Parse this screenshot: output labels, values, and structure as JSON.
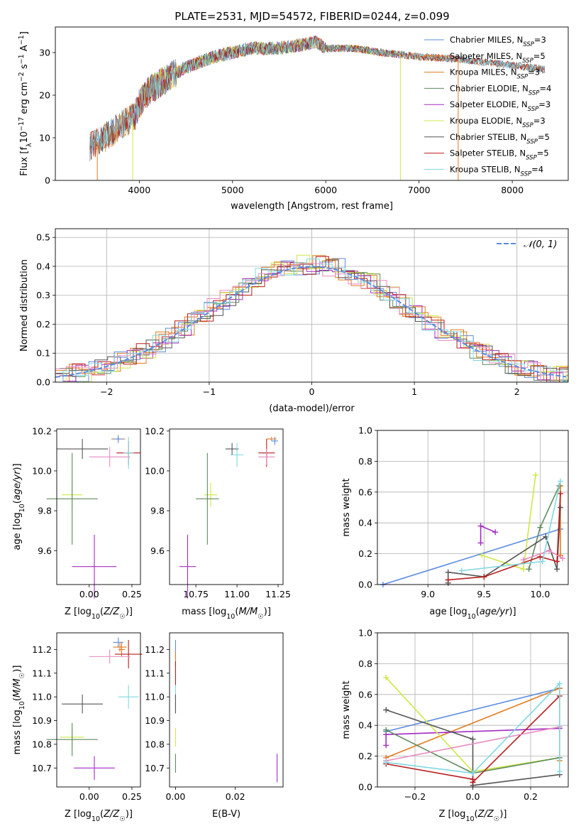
{
  "figure": {
    "title": "PLATE=2531, MJD=54572, FIBERID=0244, z=0.099"
  },
  "colors": {
    "Chabrier MILES": "#5b8ce0",
    "Salpeter MILES": "#e07b1f",
    "Kroupa MILES": "#e07b1f",
    "Chabrier ELODIE": "#5e8a5e",
    "Salpeter ELODIE": "#a32cc4",
    "Kroupa ELODIE": "#cfe846",
    "Chabrier STELIB": "#555555",
    "Salpeter STELIB": "#b81d1d",
    "Kroupa STELIB": "#80d8e0",
    "pink": "#e88ac0",
    "normal_curve": "#5b8ce0"
  },
  "chart_data": [
    {
      "id": "spectrum",
      "type": "line",
      "title": "PLATE=2531, MJD=54572, FIBERID=0244, z=0.099",
      "xlabel": "wavelength [Angstrom, rest frame]",
      "ylabel": "Flux [f_λ 10^-17 erg cm^-2 s^-1 A^-1]",
      "xlim": [
        3100,
        8600
      ],
      "ylim": [
        0,
        36
      ],
      "xticks": [
        "4000",
        "5000",
        "6000",
        "7000",
        "8000"
      ],
      "yticks": [
        "0",
        "10",
        "20",
        "30"
      ],
      "grid": false,
      "legend_placement": "top-right",
      "continuum": {
        "x": [
          3470,
          3600,
          3800,
          3950,
          4000,
          4100,
          4300,
          4500,
          4800,
          5000,
          5200,
          5500,
          5800,
          5900,
          6000,
          6300,
          6600,
          6800,
          7000,
          7400,
          7800,
          8000,
          8200,
          8350
        ],
        "y": [
          8,
          9.5,
          13,
          15,
          18,
          21,
          24,
          26.5,
          29,
          30,
          31,
          31,
          32,
          32.5,
          31,
          31,
          30,
          29.5,
          29,
          28.5,
          27.5,
          27,
          26.5,
          26
        ]
      },
      "series": [
        {
          "name": "Chabrier MILES, N_SSP=3",
          "legend_main": "Chabrier MILES, N",
          "legend_sub": "SSP",
          "legend_tail": "=3"
        },
        {
          "name": "Salpeter MILES, N_SSP=5",
          "legend_main": "Salpeter MILES, N",
          "legend_sub": "SSP",
          "legend_tail": "=5"
        },
        {
          "name": "Kroupa MILES, N_SSP=3",
          "legend_main": "Kroupa MILES, N",
          "legend_sub": "SSP",
          "legend_tail": "=3"
        },
        {
          "name": "Chabrier ELODIE, N_SSP=4",
          "legend_main": "Chabrier ELODIE, N",
          "legend_sub": "SSP",
          "legend_tail": "=4"
        },
        {
          "name": "Salpeter ELODIE, N_SSP=3",
          "legend_main": "Salpeter ELODIE, N",
          "legend_sub": "SSP",
          "legend_tail": "=3"
        },
        {
          "name": "Kroupa ELODIE, N_SSP=3",
          "legend_main": "Kroupa ELODIE, N",
          "legend_sub": "SSP",
          "legend_tail": "=3"
        },
        {
          "name": "Chabrier STELIB, N_SSP=5",
          "legend_main": "Chabrier STELIB, N",
          "legend_sub": "SSP",
          "legend_tail": "=5"
        },
        {
          "name": "Salpeter STELIB, N_SSP=5",
          "legend_main": "Salpeter STELIB, N",
          "legend_sub": "SSP",
          "legend_tail": "=5"
        },
        {
          "name": "Kroupa STELIB, N_SSP=4",
          "legend_main": "Kroupa STELIB, N",
          "legend_sub": "SSP",
          "legend_tail": "=4"
        }
      ]
    },
    {
      "id": "residuals",
      "type": "line",
      "xlabel": "(data-model)/error",
      "ylabel": "Normed distribution",
      "xlim": [
        -2.5,
        2.5
      ],
      "ylim": [
        0,
        0.53
      ],
      "xticks": [
        "−2",
        "−1",
        "0",
        "1",
        "2"
      ],
      "yticks": [
        "0.0",
        "0.1",
        "0.2",
        "0.3",
        "0.4",
        "0.5"
      ],
      "grid": true,
      "legend_placement": "top-right",
      "legend": [
        "N(0,1)"
      ],
      "curve": {
        "name": "N(0,1)",
        "mean": 0,
        "sigma": 1
      }
    },
    {
      "id": "age_vs_Z",
      "type": "scatter",
      "xlabel": "Z [log10(Z/Z☉)]",
      "ylabel": "age [log10(age/yr)]",
      "xlim": [
        -0.19,
        0.3
      ],
      "ylim": [
        9.43,
        10.21
      ],
      "xticks": [
        "0.00",
        "0.25"
      ],
      "yticks": [
        "9.6",
        "9.8",
        "10.0",
        "10.2"
      ],
      "grid": false,
      "points": [
        {
          "x": 0.17,
          "y": 10.16,
          "xerr": 0.04,
          "yerr": 0.01,
          "c": "Salpeter MILES"
        },
        {
          "x": 0.17,
          "y": 10.16,
          "xerr": 0.03,
          "yerr": 0.02,
          "c": "Chabrier MILES"
        },
        {
          "x": -0.04,
          "y": 10.11,
          "xerr": 0.15,
          "yerr": 0.05,
          "c": "Chabrier STELIB"
        },
        {
          "x": 0.23,
          "y": 10.09,
          "xerr": 0.07,
          "yerr": 0.06,
          "c": "Salpeter STELIB"
        },
        {
          "x": 0.12,
          "y": 10.07,
          "xerr": 0.12,
          "yerr": 0.05,
          "c": "pink"
        },
        {
          "x": 0.23,
          "y": 10.09,
          "xerr": 0.03,
          "yerr": 0.08,
          "c": "Kroupa STELIB"
        },
        {
          "x": -0.1,
          "y": 9.88,
          "xerr": 0.06,
          "yerr": 0.08,
          "c": "Kroupa ELODIE"
        },
        {
          "x": -0.1,
          "y": 9.86,
          "xerr": 0.15,
          "yerr": 0.23,
          "c": "Chabrier ELODIE"
        },
        {
          "x": 0.03,
          "y": 9.52,
          "xerr": 0.13,
          "yerr": 0.16,
          "c": "Salpeter ELODIE"
        }
      ]
    },
    {
      "id": "age_vs_mass",
      "type": "scatter",
      "xlabel": "mass [log10(M/M☉)]",
      "ylabel": "",
      "xlim": [
        10.59,
        11.28
      ],
      "ylim": [
        9.43,
        10.21
      ],
      "xticks": [
        "10.75",
        "11.00",
        "11.25"
      ],
      "yticks": [
        "9.6",
        "9.8",
        "10.0",
        "10.2"
      ],
      "grid": false,
      "points": [
        {
          "x": 11.21,
          "y": 10.16,
          "xerr": 0.03,
          "yerr": 0.01,
          "c": "Salpeter MILES"
        },
        {
          "x": 11.23,
          "y": 10.15,
          "xerr": 0.02,
          "yerr": 0.02,
          "c": "Chabrier MILES"
        },
        {
          "x": 10.97,
          "y": 10.11,
          "xerr": 0.04,
          "yerr": 0.03,
          "c": "Chabrier STELIB"
        },
        {
          "x": 11.18,
          "y": 10.09,
          "xerr": 0.05,
          "yerr": 0.07,
          "c": "Salpeter STELIB"
        },
        {
          "x": 11.18,
          "y": 10.07,
          "xerr": 0.05,
          "yerr": 0.04,
          "c": "pink"
        },
        {
          "x": 11.0,
          "y": 10.08,
          "xerr": 0.04,
          "yerr": 0.06,
          "c": "Kroupa STELIB"
        },
        {
          "x": 10.84,
          "y": 9.88,
          "xerr": 0.04,
          "yerr": 0.06,
          "c": "Kroupa ELODIE"
        },
        {
          "x": 10.82,
          "y": 9.86,
          "xerr": 0.07,
          "yerr": 0.23,
          "c": "Chabrier ELODIE"
        },
        {
          "x": 10.7,
          "y": 9.52,
          "xerr": 0.05,
          "yerr": 0.16,
          "c": "Salpeter ELODIE"
        }
      ]
    },
    {
      "id": "weight_vs_age",
      "type": "line",
      "xlabel": "age [log10(age/yr)]",
      "ylabel": "mass weight",
      "xlim": [
        8.55,
        10.25
      ],
      "ylim": [
        0,
        1.0
      ],
      "xticks": [
        "9.0",
        "9.5",
        "10.0"
      ],
      "yticks": [
        "0.0",
        "0.2",
        "0.4",
        "0.6",
        "0.8",
        "1.0"
      ],
      "grid": true,
      "series": [
        {
          "c": "Chabrier MILES",
          "x": [
            8.6,
            10.18
          ],
          "y": [
            0.0,
            0.36
          ]
        },
        {
          "c": "Salpeter MILES",
          "x": [
            10.18,
            10.18
          ],
          "y": [
            0.19,
            0.64
          ]
        },
        {
          "c": "Salpeter ELODIE",
          "x": [
            9.47,
            9.47,
            9.6
          ],
          "y": [
            0.27,
            0.38,
            0.34
          ]
        },
        {
          "c": "Kroupa ELODIE",
          "x": [
            9.48,
            9.85,
            9.96
          ],
          "y": [
            0.19,
            0.1,
            0.71
          ]
        },
        {
          "c": "Chabrier ELODIE",
          "x": [
            9.9,
            10.0,
            10.17
          ],
          "y": [
            0.1,
            0.37,
            0.64
          ]
        },
        {
          "c": "Chabrier STELIB",
          "x": [
            9.18,
            9.18,
            9.5,
            10.05,
            10.15,
            10.18
          ],
          "y": [
            0.01,
            0.08,
            0.05,
            0.31,
            0.1,
            0.5
          ]
        },
        {
          "c": "Salpeter STELIB",
          "x": [
            9.18,
            9.5,
            10.0,
            10.15,
            10.18
          ],
          "y": [
            0.03,
            0.05,
            0.18,
            0.15,
            0.59
          ]
        },
        {
          "c": "pink",
          "x": [
            9.85,
            10.08,
            10.2
          ],
          "y": [
            0.16,
            0.22,
            0.17
          ]
        },
        {
          "c": "Kroupa STELIB",
          "x": [
            9.3,
            10.02,
            10.18
          ],
          "y": [
            0.09,
            0.15,
            0.67
          ]
        }
      ]
    },
    {
      "id": "mass_vs_Z",
      "type": "scatter",
      "xlabel": "Z [log10(Z/Z☉)]",
      "ylabel": "mass [log10(M/M☉)]",
      "xlim": [
        -0.19,
        0.3
      ],
      "ylim": [
        10.62,
        11.27
      ],
      "xticks": [
        "0.00",
        "0.25"
      ],
      "yticks": [
        "10.7",
        "10.8",
        "10.9",
        "11.0",
        "11.1",
        "11.2"
      ],
      "grid": false,
      "points": [
        {
          "x": 0.17,
          "y": 11.23,
          "xerr": 0.03,
          "yerr": 0.02,
          "c": "Chabrier MILES"
        },
        {
          "x": 0.18,
          "y": 11.21,
          "xerr": 0.04,
          "yerr": 0.02,
          "c": "Salpeter MILES"
        },
        {
          "x": 0.19,
          "y": 11.2,
          "xerr": 0.02,
          "yerr": 0.03,
          "c": "Kroupa MILES"
        },
        {
          "x": 0.23,
          "y": 11.18,
          "xerr": 0.08,
          "yerr": 0.06,
          "c": "Salpeter STELIB"
        },
        {
          "x": 0.12,
          "y": 11.17,
          "xerr": 0.12,
          "yerr": 0.03,
          "c": "pink"
        },
        {
          "x": 0.23,
          "y": 11.0,
          "xerr": 0.06,
          "yerr": 0.05,
          "c": "Kroupa STELIB"
        },
        {
          "x": -0.04,
          "y": 10.97,
          "xerr": 0.12,
          "yerr": 0.04,
          "c": "Chabrier STELIB"
        },
        {
          "x": -0.1,
          "y": 10.83,
          "xerr": 0.07,
          "yerr": 0.04,
          "c": "Kroupa ELODIE"
        },
        {
          "x": -0.1,
          "y": 10.82,
          "xerr": 0.15,
          "yerr": 0.07,
          "c": "Chabrier ELODIE"
        },
        {
          "x": 0.03,
          "y": 10.7,
          "xerr": 0.12,
          "yerr": 0.05,
          "c": "Salpeter ELODIE"
        }
      ]
    },
    {
      "id": "mass_vs_EBV",
      "type": "scatter",
      "xlabel": "E(B-V)",
      "ylabel": "",
      "xlim": [
        -0.002,
        0.036
      ],
      "ylim": [
        10.62,
        11.27
      ],
      "xticks": [
        "0.00",
        "0.02"
      ],
      "yticks": [
        "10.7",
        "10.8",
        "10.9",
        "11.0",
        "11.1",
        "11.2"
      ],
      "grid": false,
      "points": [
        {
          "x": 0.0,
          "y": 11.2,
          "xerr": 0,
          "yerr": 0.04,
          "c": "Chabrier MILES"
        },
        {
          "x": 0.0,
          "y": 11.16,
          "xerr": 0,
          "yerr": 0.03,
          "c": "Salpeter MILES"
        },
        {
          "x": 0.0,
          "y": 11.1,
          "xerr": 0,
          "yerr": 0.05,
          "c": "Salpeter STELIB"
        },
        {
          "x": 0.0,
          "y": 11.0,
          "xerr": 0,
          "yerr": 0.05,
          "c": "Kroupa STELIB"
        },
        {
          "x": 0.0,
          "y": 10.97,
          "xerr": 0,
          "yerr": 0.04,
          "c": "Chabrier STELIB"
        },
        {
          "x": 0.0,
          "y": 10.83,
          "xerr": 0,
          "yerr": 0.04,
          "c": "Kroupa ELODIE"
        },
        {
          "x": 0.0,
          "y": 10.72,
          "xerr": 0,
          "yerr": 0.04,
          "c": "Chabrier ELODIE"
        },
        {
          "x": 0.034,
          "y": 10.7,
          "xerr": 0,
          "yerr": 0.06,
          "c": "Salpeter ELODIE"
        }
      ]
    },
    {
      "id": "weight_vs_Z",
      "type": "line",
      "xlabel": "Z [log10(Z/Z☉)]",
      "ylabel": "mass weight",
      "xlim": [
        -0.33,
        0.33
      ],
      "ylim": [
        0,
        1.0
      ],
      "xticks": [
        "−0.2",
        "0.0",
        "0.2"
      ],
      "yticks": [
        "0.0",
        "0.2",
        "0.4",
        "0.6",
        "0.8",
        "1.0"
      ],
      "grid": true,
      "series": [
        {
          "c": "Chabrier MILES",
          "x": [
            -0.3,
            0.3
          ],
          "y": [
            0.36,
            0.64
          ]
        },
        {
          "c": "Salpeter MILES",
          "x": [
            -0.3,
            0.3,
            0.3
          ],
          "y": [
            0.19,
            0.64,
            0.17
          ]
        },
        {
          "c": "Salpeter ELODIE",
          "x": [
            -0.3,
            -0.3,
            0.3
          ],
          "y": [
            0.27,
            0.34,
            0.38
          ]
        },
        {
          "c": "Kroupa ELODIE",
          "x": [
            -0.3,
            0.0,
            0.3
          ],
          "y": [
            0.71,
            0.1,
            0.19
          ]
        },
        {
          "c": "Chabrier ELODIE",
          "x": [
            -0.3,
            0.0,
            0.3
          ],
          "y": [
            0.37,
            0.09,
            0.19
          ]
        },
        {
          "c": "Chabrier STELIB",
          "x": [
            -0.3,
            0.0,
            0.0,
            0.3
          ],
          "y": [
            0.5,
            0.31,
            0.01,
            0.08
          ]
        },
        {
          "c": "Salpeter STELIB",
          "x": [
            -0.3,
            0.0,
            0.0,
            0.3
          ],
          "y": [
            0.15,
            0.05,
            0.03,
            0.59
          ]
        },
        {
          "c": "pink",
          "x": [
            -0.3,
            0.3
          ],
          "y": [
            0.17,
            0.39
          ]
        },
        {
          "c": "Kroupa STELIB",
          "x": [
            -0.3,
            0.0,
            0.3,
            0.3
          ],
          "y": [
            0.16,
            0.09,
            0.67,
            0.1
          ]
        }
      ]
    }
  ]
}
